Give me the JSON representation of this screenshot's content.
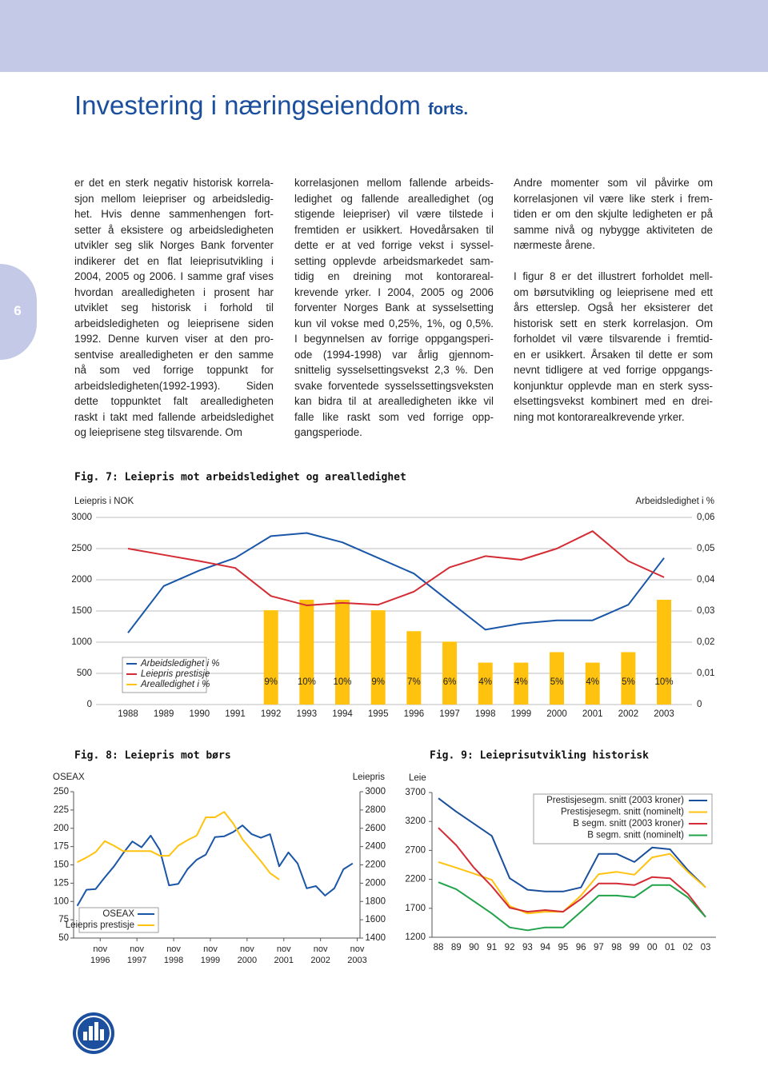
{
  "header": {
    "title": "Investering i næringseiendom",
    "suffix": "forts."
  },
  "page_number": "6",
  "columns": [
    [
      [
        "er det en sterk negativ historisk korrela-",
        "sjon mellom leiepriser og arbeidsledig-",
        "het. Hvis denne sammenhengen fort-",
        "setter å eksistere og arbeidsledigheten",
        "utvikler seg slik Norges Bank forventer",
        "indikerer det en flat leieprisutvikling i",
        "2004, 2005 og 2006. I samme graf vises",
        "hvordan arealledigheten i prosent har",
        "utviklet seg historisk i forhold til",
        "arbeidsledigheten og leieprisene siden",
        "1992. Denne kurven viser at den pro-",
        "sentvise arealledigheten er den samme",
        "nå som ved forrige toppunkt for",
        "arbeidsledigheten(1992-1993). Siden",
        "dette toppunktet falt arealledigheten",
        "raskt i takt med fallende arbeidsledighet",
        "og leieprisene steg tilsvarende. Om"
      ]
    ],
    [
      [
        "korrelasjonen mellom fallende arbeids-",
        "ledighet og fallende arealledighet (og",
        "stigende leiepriser) vil være tilstede i",
        "fremtiden er usikkert. Hovedårsaken til",
        "dette er at ved forrige vekst i syssel-",
        "setting opplevde arbeidsmarkedet sam-",
        "tidig en dreining mot kontorareal-",
        "krevende yrker. I 2004, 2005 og 2006",
        "forventer Norges Bank at sysselsetting",
        "kun vil vokse med 0,25%, 1%, og 0,5%.",
        "I begynnelsen av forrige oppgangsperi-",
        "ode (1994-1998) var årlig gjennom-",
        "snittelig sysselsettingsvekst 2,3 %. Den",
        "svake forventede sysselssettingsveksten",
        "kan bidra til at arealledigheten ikke vil",
        "falle like raskt som ved forrige opp-",
        "gangsperiode."
      ]
    ],
    [
      [
        "Andre momenter som vil påvirke om",
        "korrelasjonen vil være like sterk i frem-",
        "tiden er om den skjulte ledigheten er på",
        "samme nivå og nybygge aktiviteten de",
        "nærmeste årene."
      ],
      [
        "I figur 8 er det illustrert forholdet mell-",
        "om børsutvikling og leieprisene med ett",
        "års etterslep. Også her eksisterer det",
        "historisk sett en sterk korrelasjon. Om",
        "forholdet vil være tilsvarende i fremtid-",
        "en er usikkert. Årsaken til dette er som",
        "nevnt tidligere at ved forrige oppgangs-",
        "konjunktur opplevde man en sterk syss-",
        "elsettingsvekst kombinert med en drei-",
        "ning mot kontorarealkrevende yrker."
      ]
    ]
  ],
  "chart_data": [
    {
      "type": "combo",
      "title": "Fig. 7: Leiepris mot arbeidsledighet og arealledighet",
      "ylabel": "Leiepris i NOK",
      "y2label": "Arbeidsledighet i %",
      "categories": [
        "1988",
        "1989",
        "1990",
        "1991",
        "1992",
        "1993",
        "1994",
        "1995",
        "1996",
        "1997",
        "1998",
        "1999",
        "2000",
        "2001",
        "2002",
        "2003"
      ],
      "ylim": [
        0,
        3000
      ],
      "yticks": [
        0,
        500,
        1000,
        1500,
        2000,
        2500,
        3000
      ],
      "y2lim": [
        0,
        0.06
      ],
      "y2ticks": [
        0,
        {
          "value": 0.01,
          "label": "0,01"
        },
        {
          "value": 0.02,
          "label": "0,02"
        },
        {
          "value": 0.03,
          "label": "0,03"
        },
        {
          "value": 0.04,
          "label": "0,04"
        },
        {
          "value": 0.05,
          "label": "0,05"
        },
        {
          "value": 0.06,
          "label": "0,06"
        }
      ],
      "grid": true,
      "series": [
        {
          "name": "Arbeidsledighet i %",
          "type": "line",
          "axis": "y2",
          "color": "#1a56a8",
          "values": [
            0.023,
            0.038,
            0.043,
            0.047,
            0.054,
            0.055,
            0.052,
            0.047,
            0.042,
            0.033,
            0.024,
            0.026,
            0.027,
            0.027,
            0.032,
            0.047
          ]
        },
        {
          "name": "Leiepris prestisje",
          "type": "line",
          "color": "#d42c34",
          "values": [
            2500,
            2400,
            2300,
            2190,
            1740,
            1590,
            1630,
            1600,
            1810,
            2200,
            2380,
            2320,
            2500,
            2780,
            2300,
            2040
          ]
        },
        {
          "name": "Arealledighet i %",
          "type": "bar",
          "color": "#ffc20e",
          "values": [
            null,
            null,
            null,
            null,
            9,
            10,
            10,
            9,
            7,
            6,
            4,
            4,
            5,
            4,
            5,
            10
          ],
          "value_labels": [
            null,
            null,
            null,
            null,
            "9%",
            "10%",
            "10%",
            "9%",
            "7%",
            "6%",
            "4%",
            "4%",
            "5%",
            "4%",
            "5%",
            "10%"
          ]
        }
      ]
    },
    {
      "type": "line",
      "title": "Fig. 8: Leiepris mot børs",
      "ylabel": "OSEAX",
      "y2label": "Leiepris",
      "x": [
        1996.25,
        1996.5,
        1996.75,
        1997,
        1997.25,
        1997.5,
        1997.75,
        1998,
        1998.25,
        1998.5,
        1998.75,
        1999,
        1999.25,
        1999.5,
        1999.75,
        2000,
        2000.25,
        2000.5,
        2000.75,
        2001,
        2001.25,
        2001.5,
        2001.75,
        2002,
        2002.25,
        2002.5,
        2002.75,
        2003,
        2003.25,
        2003.5,
        2003.75
      ],
      "xlim": [
        1996.15,
        2003.95
      ],
      "xticks": [
        {
          "value": 1996.875,
          "label": "nov 1996"
        },
        {
          "value": 1997.875,
          "label": "nov 1997"
        },
        {
          "value": 1998.875,
          "label": "nov 1998"
        },
        {
          "value": 1999.875,
          "label": "nov 1999"
        },
        {
          "value": 2000.875,
          "label": "nov 2000"
        },
        {
          "value": 2001.875,
          "label": "nov 2001"
        },
        {
          "value": 2002.875,
          "label": "nov 2002"
        },
        {
          "value": 2003.875,
          "label": "nov 2003"
        }
      ],
      "ylim": [
        50,
        250
      ],
      "yticks": [
        50,
        75,
        100,
        125,
        150,
        175,
        200,
        225,
        250
      ],
      "y2lim": [
        1400,
        3000
      ],
      "y2ticks": [
        1400,
        1600,
        1800,
        2000,
        2200,
        2400,
        2600,
        2800,
        3000
      ],
      "series": [
        {
          "name": "OSEAX",
          "color": "#1a56a8",
          "values": [
            94,
            116,
            117,
            133,
            148,
            166,
            182,
            174,
            190,
            170,
            122,
            124,
            144,
            157,
            164,
            188,
            189,
            195,
            204,
            192,
            187,
            192,
            148,
            167,
            152,
            118,
            121,
            108,
            118,
            144,
            152
          ]
        },
        {
          "name": "Leiepris prestisje",
          "axis": "y2",
          "color": "#ffc20e",
          "values": [
            2230,
            2280,
            2340,
            2460,
            2410,
            2350,
            2350,
            2350,
            2350,
            2300,
            2300,
            2410,
            2470,
            2520,
            2720,
            2720,
            2780,
            2650,
            2480,
            2360,
            2240,
            2110,
            2040,
            null,
            null,
            null,
            null,
            null,
            null,
            null,
            null
          ]
        }
      ]
    },
    {
      "type": "line",
      "title": "Fig. 9: Leieprisutvikling historisk",
      "ylabel": "Leie",
      "categories": [
        "88",
        "89",
        "90",
        "91",
        "92",
        "93",
        "94",
        "95",
        "96",
        "97",
        "98",
        "99",
        "00",
        "01",
        "02",
        "03"
      ],
      "ylim": [
        1200,
        3700
      ],
      "yticks": [
        1200,
        1700,
        2200,
        2700,
        3200,
        3700
      ],
      "series": [
        {
          "name": "Prestisjesegm. snitt (2003 kroner)",
          "color": "#1a4f9c",
          "values": [
            3600,
            3370,
            3160,
            2950,
            2220,
            2020,
            1990,
            1990,
            2060,
            2640,
            2640,
            2500,
            2750,
            2720,
            2360,
            2060
          ]
        },
        {
          "name": "Prestisjesegm. snitt (nominelt)",
          "color": "#ffc20e",
          "values": [
            2500,
            2400,
            2300,
            2190,
            1740,
            1610,
            1640,
            1640,
            1920,
            2290,
            2330,
            2280,
            2580,
            2640,
            2330,
            2060
          ]
        },
        {
          "name": "B segm. snitt (2003 kroner)",
          "color": "#d42c34",
          "values": [
            3090,
            2790,
            2400,
            2080,
            1710,
            1640,
            1670,
            1640,
            1860,
            2130,
            2130,
            2100,
            2240,
            2220,
            1950,
            1550
          ]
        },
        {
          "name": "B segm. snitt (nominelt)",
          "color": "#21a34a",
          "values": [
            2150,
            2030,
            1820,
            1610,
            1370,
            1320,
            1370,
            1370,
            1640,
            1920,
            1920,
            1890,
            2100,
            2100,
            1890,
            1550
          ]
        }
      ]
    }
  ]
}
